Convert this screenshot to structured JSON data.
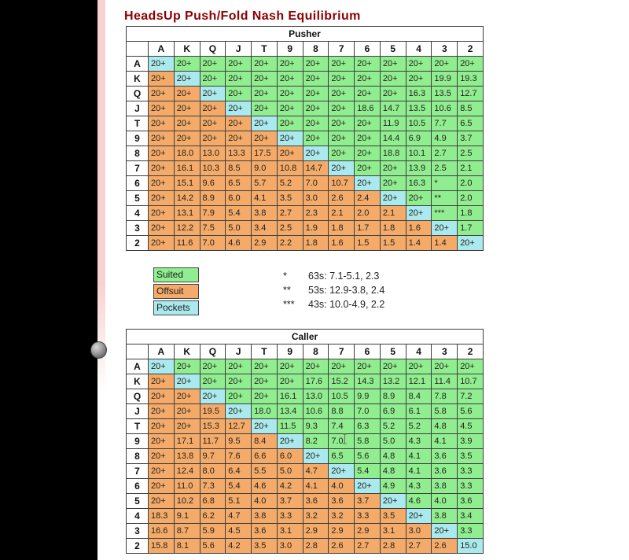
{
  "page": {
    "title": "HeadsUp Push/Fold Nash Equilibrium"
  },
  "colors": {
    "title": "#8b0000",
    "suited": "#90ee90",
    "offsuit": "#f4ab6a",
    "pockets": "#aaeaee",
    "edge_strip": "#f8d2d2",
    "letterbox": "#000000"
  },
  "ranks": [
    "A",
    "K",
    "Q",
    "J",
    "T",
    "9",
    "8",
    "7",
    "6",
    "5",
    "4",
    "3",
    "2"
  ],
  "legend": [
    {
      "label": "Suited",
      "swatch": "suited"
    },
    {
      "label": "Offsuit",
      "swatch": "offsuit"
    },
    {
      "label": "Pockets",
      "swatch": "pockets"
    }
  ],
  "footnotes": [
    {
      "marker": "*",
      "text": "63s: 7.1-5.1, 2.3"
    },
    {
      "marker": "**",
      "text": "53s: 12.9-3.8, 2.4"
    },
    {
      "marker": "***",
      "text": "43s: 10.0-4.9, 2.2"
    }
  ],
  "chart_data": [
    {
      "type": "table",
      "title": "Pusher",
      "col_labels": [
        "A",
        "K",
        "Q",
        "J",
        "T",
        "9",
        "8",
        "7",
        "6",
        "5",
        "4",
        "3",
        "2"
      ],
      "row_labels": [
        "A",
        "K",
        "Q",
        "J",
        "T",
        "9",
        "8",
        "7",
        "6",
        "5",
        "4",
        "3",
        "2"
      ],
      "values": [
        [
          "20+",
          "20+",
          "20+",
          "20+",
          "20+",
          "20+",
          "20+",
          "20+",
          "20+",
          "20+",
          "20+",
          "20+",
          "20+"
        ],
        [
          "20+",
          "20+",
          "20+",
          "20+",
          "20+",
          "20+",
          "20+",
          "20+",
          "20+",
          "20+",
          "20+",
          "19.9",
          "19.3"
        ],
        [
          "20+",
          "20+",
          "20+",
          "20+",
          "20+",
          "20+",
          "20+",
          "20+",
          "20+",
          "20+",
          "16.3",
          "13.5",
          "12.7"
        ],
        [
          "20+",
          "20+",
          "20+",
          "20+",
          "20+",
          "20+",
          "20+",
          "20+",
          "18.6",
          "14.7",
          "13.5",
          "10.6",
          "8.5"
        ],
        [
          "20+",
          "20+",
          "20+",
          "20+",
          "20+",
          "20+",
          "20+",
          "20+",
          "20+",
          "11.9",
          "10.5",
          "7.7",
          "6.5"
        ],
        [
          "20+",
          "20+",
          "20+",
          "20+",
          "20+",
          "20+",
          "20+",
          "20+",
          "20+",
          "14.4",
          "6.9",
          "4.9",
          "3.7"
        ],
        [
          "20+",
          "18.0",
          "13.0",
          "13.3",
          "17.5",
          "20+",
          "20+",
          "20+",
          "20+",
          "18.8",
          "10.1",
          "2.7",
          "2.5"
        ],
        [
          "20+",
          "16.1",
          "10.3",
          "8.5",
          "9.0",
          "10.8",
          "14.7",
          "20+",
          "20+",
          "20+",
          "13.9",
          "2.5",
          "2.1"
        ],
        [
          "20+",
          "15.1",
          "9.6",
          "6.5",
          "5.7",
          "5.2",
          "7.0",
          "10.7",
          "20+",
          "20+",
          "16.3",
          "*",
          "2.0"
        ],
        [
          "20+",
          "14.2",
          "8.9",
          "6.0",
          "4.1",
          "3.5",
          "3.0",
          "2.6",
          "2.4",
          "20+",
          "20+",
          "**",
          "2.0"
        ],
        [
          "20+",
          "13.1",
          "7.9",
          "5.4",
          "3.8",
          "2.7",
          "2.3",
          "2.1",
          "2.0",
          "2.1",
          "20+",
          "***",
          "1.8"
        ],
        [
          "20+",
          "12.2",
          "7.5",
          "5.0",
          "3.4",
          "2.5",
          "1.9",
          "1.8",
          "1.7",
          "1.8",
          "1.6",
          "20+",
          "1.7"
        ],
        [
          "20+",
          "11.6",
          "7.0",
          "4.6",
          "2.9",
          "2.2",
          "1.8",
          "1.6",
          "1.5",
          "1.5",
          "1.4",
          "1.4",
          "20+"
        ]
      ]
    },
    {
      "type": "table",
      "title": "Caller",
      "col_labels": [
        "A",
        "K",
        "Q",
        "J",
        "T",
        "9",
        "8",
        "7",
        "6",
        "5",
        "4",
        "3",
        "2"
      ],
      "row_labels": [
        "A",
        "K",
        "Q",
        "J",
        "T",
        "9",
        "8",
        "7",
        "6",
        "5",
        "4",
        "3",
        "2"
      ],
      "values": [
        [
          "20+",
          "20+",
          "20+",
          "20+",
          "20+",
          "20+",
          "20+",
          "20+",
          "20+",
          "20+",
          "20+",
          "20+",
          "20+"
        ],
        [
          "20+",
          "20+",
          "20+",
          "20+",
          "20+",
          "20+",
          "17.6",
          "15.2",
          "14.3",
          "13.2",
          "12.1",
          "11.4",
          "10.7"
        ],
        [
          "20+",
          "20+",
          "20+",
          "20+",
          "20+",
          "16.1",
          "13.0",
          "10.5",
          "9.9",
          "8.9",
          "8.4",
          "7.8",
          "7.2"
        ],
        [
          "20+",
          "20+",
          "19.5",
          "20+",
          "18.0",
          "13.4",
          "10.6",
          "8.8",
          "7.0",
          "6.9",
          "6.1",
          "5.8",
          "5.6"
        ],
        [
          "20+",
          "20+",
          "15.3",
          "12.7",
          "20+",
          "11.5",
          "9.3",
          "7.4",
          "6.3",
          "5.2",
          "5.2",
          "4.8",
          "4.5"
        ],
        [
          "20+",
          "17.1",
          "11.7",
          "9.5",
          "8.4",
          "20+",
          "8.2",
          "7.0",
          "5.8",
          "5.0",
          "4.3",
          "4.1",
          "3.9"
        ],
        [
          "20+",
          "13.8",
          "9.7",
          "7.6",
          "6.6",
          "6.0",
          "20+",
          "6.5",
          "5.6",
          "4.8",
          "4.1",
          "3.6",
          "3.5"
        ],
        [
          "20+",
          "12.4",
          "8.0",
          "6.4",
          "5.5",
          "5.0",
          "4.7",
          "20+",
          "5.4",
          "4.8",
          "4.1",
          "3.6",
          "3.3"
        ],
        [
          "20+",
          "11.0",
          "7.3",
          "5.4",
          "4.6",
          "4.2",
          "4.1",
          "4.0",
          "20+",
          "4.9",
          "4.3",
          "3.8",
          "3.3"
        ],
        [
          "20+",
          "10.2",
          "6.8",
          "5.1",
          "4.0",
          "3.7",
          "3.6",
          "3.6",
          "3.7",
          "20+",
          "4.6",
          "4.0",
          "3.6"
        ],
        [
          "18.3",
          "9.1",
          "6.2",
          "4.7",
          "3.8",
          "3.3",
          "3.2",
          "3.2",
          "3.3",
          "3.5",
          "20+",
          "3.8",
          "3.4"
        ],
        [
          "16.6",
          "8.7",
          "5.9",
          "4.5",
          "3.6",
          "3.1",
          "2.9",
          "2.9",
          "2.9",
          "3.1",
          "3.0",
          "20+",
          "3.3"
        ],
        [
          "15.8",
          "8.1",
          "5.6",
          "4.2",
          "3.5",
          "3.0",
          "2.8",
          "2.6",
          "2.7",
          "2.8",
          "2.7",
          "2.6",
          "15.0"
        ]
      ]
    }
  ]
}
